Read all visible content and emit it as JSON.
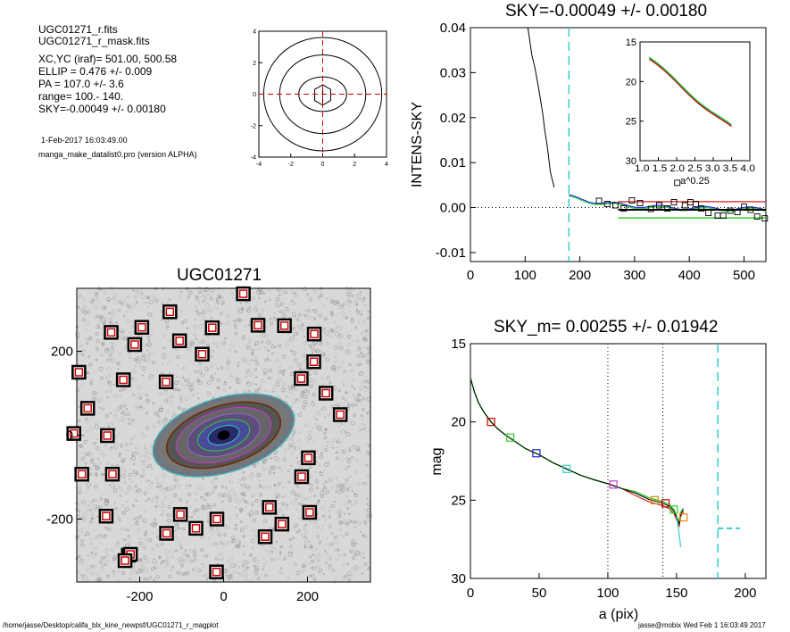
{
  "header": {
    "files": [
      "UGC01271_r.fits",
      "UGC01271_r_mask.fits"
    ],
    "params": [
      "XC,YC (iraf)=   501.00, 500.58",
      "ELLIP = 0.476 +/- 0.009",
      "PA    = 107.0 +/-   3.6",
      "range=  100.-  140.",
      "SKY=-0.00049 +/- 0.00180"
    ],
    "date": "1-Feb-2017 16:03:49.00",
    "program": "manga_make_datalist0.pro (version ALPHA)"
  },
  "footer": {
    "path": "/home/jasse/Desktop/califa_blx_kine_newpsf/UGC01271_r_magplot",
    "user": "jasse@mobix  Wed Feb  1 16:03:49 2017"
  },
  "colors": {
    "red": "#cc0000",
    "green": "#33cc33",
    "cyan": "#33cccc",
    "blue": "#2222cc",
    "magenta": "#cc33cc",
    "orange": "#dd8800",
    "brown": "#6b2b00"
  },
  "chart_data": [
    {
      "id": "contour",
      "type": "contour",
      "xlim": [
        -4,
        4
      ],
      "ylim": [
        -4,
        4
      ],
      "xticks": [
        -4,
        -2,
        0,
        2,
        4
      ],
      "yticks": [
        -4,
        -2,
        0,
        2,
        4
      ],
      "crosshair": [
        0,
        0
      ]
    },
    {
      "id": "sky",
      "type": "line",
      "title": "SKY=-0.00049 +/- 0.00180",
      "ylabel": "INTENS-SKY",
      "xlim": [
        0,
        540
      ],
      "ylim": [
        -0.012,
        0.04
      ],
      "xticks": [
        0,
        100,
        200,
        300,
        400,
        500
      ],
      "yticks": [
        -0.01,
        0.0,
        0.01,
        0.02,
        0.03,
        0.04
      ],
      "ytick_labels": [
        "-0.01",
        "0.00",
        "0.01",
        "0.02",
        "0.03",
        "0.04"
      ],
      "vline": 180,
      "profile": [
        [
          105,
          0.04
        ],
        [
          112,
          0.034
        ],
        [
          118,
          0.031
        ],
        [
          124,
          0.027
        ],
        [
          128,
          0.024
        ],
        [
          132,
          0.021
        ],
        [
          136,
          0.017
        ],
        [
          140,
          0.014
        ],
        [
          143,
          0.011
        ],
        [
          146,
          0.008
        ],
        [
          150,
          0.006
        ],
        [
          153,
          0.0045
        ]
      ],
      "boxes": [
        [
          235,
          0.0015
        ],
        [
          250,
          0.0008
        ],
        [
          265,
          0.0005
        ],
        [
          280,
          -0.0002
        ],
        [
          295,
          0.0016
        ],
        [
          310,
          0.001
        ],
        [
          330,
          -0.0003
        ],
        [
          345,
          0.0005
        ],
        [
          360,
          -0.0002
        ],
        [
          372,
          0.0012
        ],
        [
          378,
          0.0055
        ],
        [
          392,
          0.0005
        ],
        [
          402,
          0.0012
        ],
        [
          412,
          0.0008
        ],
        [
          422,
          -0.0002
        ],
        [
          435,
          -0.0012
        ],
        [
          452,
          -0.0018
        ],
        [
          462,
          -0.0018
        ],
        [
          475,
          -0.0007
        ],
        [
          488,
          -0.001
        ],
        [
          500,
          0.0002
        ],
        [
          512,
          -0.0005
        ],
        [
          524,
          -0.002
        ],
        [
          538,
          -0.0024
        ]
      ],
      "sky_level": -0.00049,
      "sky_err": 0.0018,
      "inset": {
        "xlabel": "a^0.25",
        "xlim": [
          1.0,
          4.0
        ],
        "ylim": [
          30,
          15
        ],
        "xticks": [
          1.0,
          1.5,
          2.0,
          2.5,
          3.0,
          3.5,
          4.0
        ],
        "xtick_text": "1.0 1.5 2.0 2.5 3.0 3.5 4.0",
        "yticks": [
          15,
          20,
          25,
          30
        ]
      }
    },
    {
      "id": "image",
      "type": "image",
      "title": "UGC01271",
      "xlim": [
        -350,
        350
      ],
      "ylim": [
        -350,
        350
      ],
      "xticks": [
        -200,
        0,
        200
      ],
      "yticks": [
        -200,
        0,
        200
      ],
      "masks": [
        [
          47,
          337
        ],
        [
          -128,
          294
        ],
        [
          -268,
          245
        ],
        [
          82,
          262
        ],
        [
          -195,
          257
        ],
        [
          -27,
          256
        ],
        [
          145,
          261
        ],
        [
          -105,
          225
        ],
        [
          -212,
          216
        ],
        [
          -51,
          193
        ],
        [
          216,
          241
        ],
        [
          215,
          175
        ],
        [
          -345,
          150
        ],
        [
          -239,
          132
        ],
        [
          185,
          135
        ],
        [
          -137,
          127
        ],
        [
          244,
          100
        ],
        [
          -324,
          64
        ],
        [
          278,
          49
        ],
        [
          -357,
          4
        ],
        [
          -277,
          -1
        ],
        [
          202,
          -54
        ],
        [
          -338,
          -93
        ],
        [
          -265,
          -93
        ],
        [
          186,
          -99
        ],
        [
          -280,
          -193
        ],
        [
          -103,
          -189
        ],
        [
          109,
          -172
        ],
        [
          -66,
          -222
        ],
        [
          -16,
          -200
        ],
        [
          139,
          -212
        ],
        [
          205,
          -184
        ],
        [
          -136,
          -234
        ],
        [
          99,
          -242
        ],
        [
          -227,
          -286
        ],
        [
          -222,
          -284
        ],
        [
          -235,
          -299
        ],
        [
          -17,
          -326
        ]
      ]
    },
    {
      "id": "mag",
      "type": "line",
      "title": "SKY_m=  0.00255 +/- 0.01942",
      "xlabel": "a (pix)",
      "ylabel": "mag",
      "xlim": [
        0,
        215
      ],
      "ylim": [
        30,
        15
      ],
      "xticks": [
        0,
        50,
        100,
        150,
        200
      ],
      "yticks": [
        15,
        20,
        25,
        30
      ],
      "vlines_dotted": [
        100,
        140
      ],
      "vline_cyan": 180,
      "sky_segment": {
        "x": [
          180,
          196
        ],
        "y": 26.8
      },
      "profile": [
        [
          0,
          17.2
        ],
        [
          3,
          18.1
        ],
        [
          6,
          18.8
        ],
        [
          10,
          19.4
        ],
        [
          15,
          20.0
        ],
        [
          20,
          20.45
        ],
        [
          25,
          20.8
        ],
        [
          30,
          21.1
        ],
        [
          40,
          21.7
        ],
        [
          50,
          22.1
        ],
        [
          60,
          22.6
        ],
        [
          70,
          23.0
        ],
        [
          80,
          23.4
        ],
        [
          90,
          23.7
        ],
        [
          100,
          23.95
        ],
        [
          110,
          24.25
        ],
        [
          120,
          24.55
        ],
        [
          130,
          24.95
        ],
        [
          140,
          25.2
        ],
        [
          145,
          25.4
        ],
        [
          148,
          25.7
        ],
        [
          150,
          26.1
        ],
        [
          152,
          26.5
        ],
        [
          153,
          25.9
        ],
        [
          155,
          25.6
        ]
      ],
      "markers": [
        [
          15,
          20.0,
          "red"
        ],
        [
          29,
          21.0,
          "green"
        ],
        [
          48,
          22.0,
          "blue"
        ],
        [
          70,
          23.0,
          "cyan"
        ],
        [
          104,
          24.0,
          "magenta"
        ],
        [
          134,
          25.0,
          "orange"
        ],
        [
          142,
          25.2,
          "red"
        ],
        [
          148,
          25.6,
          "green"
        ],
        [
          155,
          26.1,
          "orange"
        ]
      ]
    }
  ]
}
